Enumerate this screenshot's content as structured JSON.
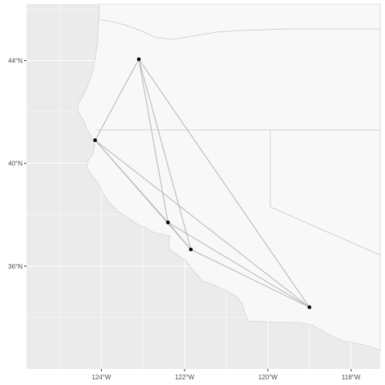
{
  "map": {
    "projection": "equirectangular",
    "lon_range": [
      -125.8,
      -117.3
    ],
    "lat_range": [
      32.0,
      46.2
    ],
    "panel_color": "#ebebeb",
    "land_color": "#f8f8f8",
    "border_color": "#c8c8c8",
    "grid_color": "#ffffff"
  },
  "axes": {
    "x_ticks": [
      {
        "lon": -124,
        "label": "124°W"
      },
      {
        "lon": -122,
        "label": "122°W"
      },
      {
        "lon": -120,
        "label": "120°W"
      },
      {
        "lon": -118,
        "label": "118°W"
      }
    ],
    "y_ticks": [
      {
        "lat": 44,
        "label": "44°N"
      },
      {
        "lat": 40,
        "label": "40°N"
      },
      {
        "lat": 36,
        "label": "36°N"
      }
    ]
  },
  "chart_data": {
    "type": "scatter",
    "points": [
      {
        "lon": -123.1,
        "lat": 44.05
      },
      {
        "lon": -124.15,
        "lat": 40.9
      },
      {
        "lon": -122.4,
        "lat": 37.7
      },
      {
        "lon": -121.85,
        "lat": 36.65
      },
      {
        "lon": -119.0,
        "lat": 34.4
      }
    ],
    "edges": [
      [
        0,
        1
      ],
      [
        0,
        2
      ],
      [
        0,
        3
      ],
      [
        0,
        4
      ],
      [
        1,
        2
      ],
      [
        1,
        3
      ],
      [
        1,
        4
      ],
      [
        2,
        3
      ],
      [
        2,
        4
      ],
      [
        3,
        4
      ]
    ],
    "point_color": "#000000",
    "edge_color": "#b4b4b4"
  }
}
